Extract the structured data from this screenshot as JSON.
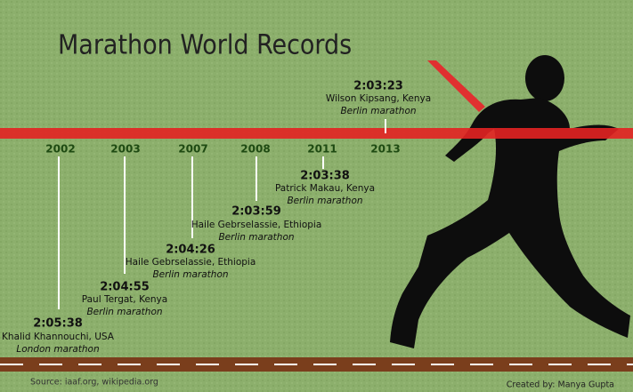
{
  "title": "Marathon World Records",
  "records": [
    {
      "year": "2002",
      "time": "2:05:38",
      "holder": "Khalid Khannouchi, USA",
      "race": "London marathon"
    },
    {
      "year": "2003",
      "time": "2:04:55",
      "holder": "Paul Tergat, Kenya",
      "race": "Berlin marathon"
    },
    {
      "year": "2007",
      "time": "2:04:26",
      "holder": "Haile Gebrselassie, Ethiopia",
      "race": "Berlin marathon"
    },
    {
      "year": "2008",
      "time": "2:03:59",
      "holder": "Haile Gebrselassie, Ethiopia",
      "race": "Berlin marathon"
    },
    {
      "year": "2011",
      "time": "2:03:38",
      "holder": "Patrick Makau, Kenya",
      "race": "Berlin marathon"
    },
    {
      "year": "2013",
      "time": "2:03:23",
      "holder": "Wilson Kipsang, Kenya",
      "race": "Berlin marathon"
    }
  ],
  "source": "Source: iaaf.org, wikipedia.org",
  "credit": "Created by: Manya Gupta"
}
